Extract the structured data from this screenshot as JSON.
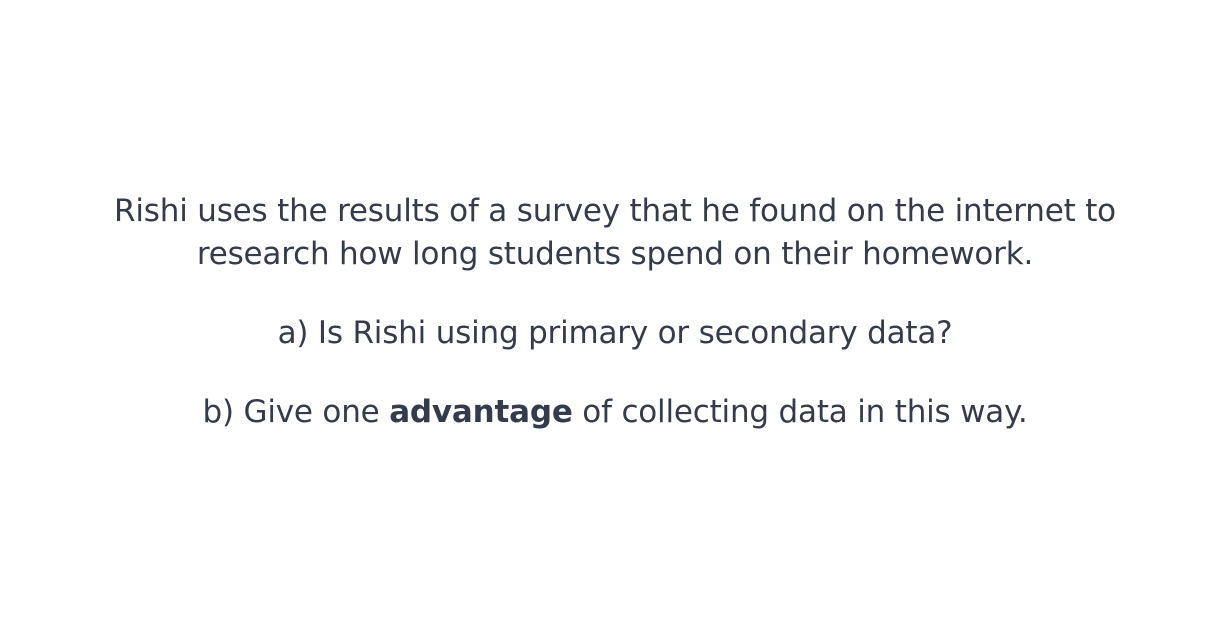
{
  "intro": {
    "line1": "Rishi uses the results of a survey that he found on the internet to",
    "line2": "research how long students spend on their homework."
  },
  "questions": {
    "a": "a) Is Rishi using primary or secondary data?",
    "b_before": "b) Give one ",
    "b_bold": "advantage",
    "b_after": " of collecting data in this way."
  },
  "colors": {
    "text": "#333c4d",
    "background": "#ffffff"
  }
}
